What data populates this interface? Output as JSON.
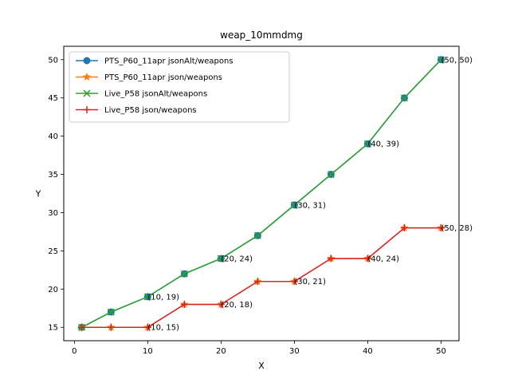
{
  "chart_data": {
    "type": "line",
    "title": "weap_10mmdmg",
    "xlabel": "X",
    "ylabel": "Y",
    "xlim": [
      -1.45,
      52.45
    ],
    "ylim": [
      13.25,
      51.75
    ],
    "xticks": [
      0,
      10,
      20,
      30,
      40,
      50
    ],
    "yticks": [
      15,
      20,
      25,
      30,
      35,
      40,
      45,
      50
    ],
    "grid": false,
    "legend_position": "upper left",
    "series": [
      {
        "name": "PTS_P60_11apr jsonAlt/weapons",
        "color": "#1f77b4",
        "marker": "circle",
        "x": [
          1,
          5,
          10,
          15,
          20,
          25,
          30,
          35,
          40,
          45,
          50
        ],
        "y": [
          15,
          17,
          19,
          22,
          24,
          27,
          31,
          35,
          39,
          45,
          50
        ]
      },
      {
        "name": "PTS_P60_11apr json/weapons",
        "color": "#ff7f0e",
        "marker": "star",
        "x": [
          1,
          5,
          10,
          15,
          20,
          25,
          30,
          35,
          40,
          45,
          50
        ],
        "y": [
          15,
          15,
          15,
          18,
          18,
          21,
          21,
          24,
          24,
          28,
          28
        ]
      },
      {
        "name": "Live_P58 jsonAlt/weapons",
        "color": "#2ca02c",
        "marker": "x",
        "x": [
          1,
          5,
          10,
          15,
          20,
          25,
          30,
          35,
          40,
          45,
          50
        ],
        "y": [
          15,
          17,
          19,
          22,
          24,
          27,
          31,
          35,
          39,
          45,
          50
        ]
      },
      {
        "name": "Live_P58 json/weapons",
        "color": "#d62728",
        "marker": "plus",
        "x": [
          1,
          5,
          10,
          15,
          20,
          25,
          30,
          35,
          40,
          45,
          50
        ],
        "y": [
          15,
          15,
          15,
          18,
          18,
          21,
          21,
          24,
          24,
          28,
          28
        ]
      }
    ],
    "annotations": [
      {
        "text": "(10, 19)",
        "x": 10,
        "y": 19
      },
      {
        "text": "(20, 24)",
        "x": 20,
        "y": 24
      },
      {
        "text": "(30, 31)",
        "x": 30,
        "y": 31
      },
      {
        "text": "(40, 39)",
        "x": 40,
        "y": 39
      },
      {
        "text": "(50, 50)",
        "x": 50,
        "y": 50
      },
      {
        "text": "(10, 15)",
        "x": 10,
        "y": 15
      },
      {
        "text": "(20, 18)",
        "x": 20,
        "y": 18
      },
      {
        "text": "(30, 21)",
        "x": 30,
        "y": 21
      },
      {
        "text": "(40, 24)",
        "x": 40,
        "y": 24
      },
      {
        "text": "(50, 28)",
        "x": 50,
        "y": 28
      }
    ]
  }
}
